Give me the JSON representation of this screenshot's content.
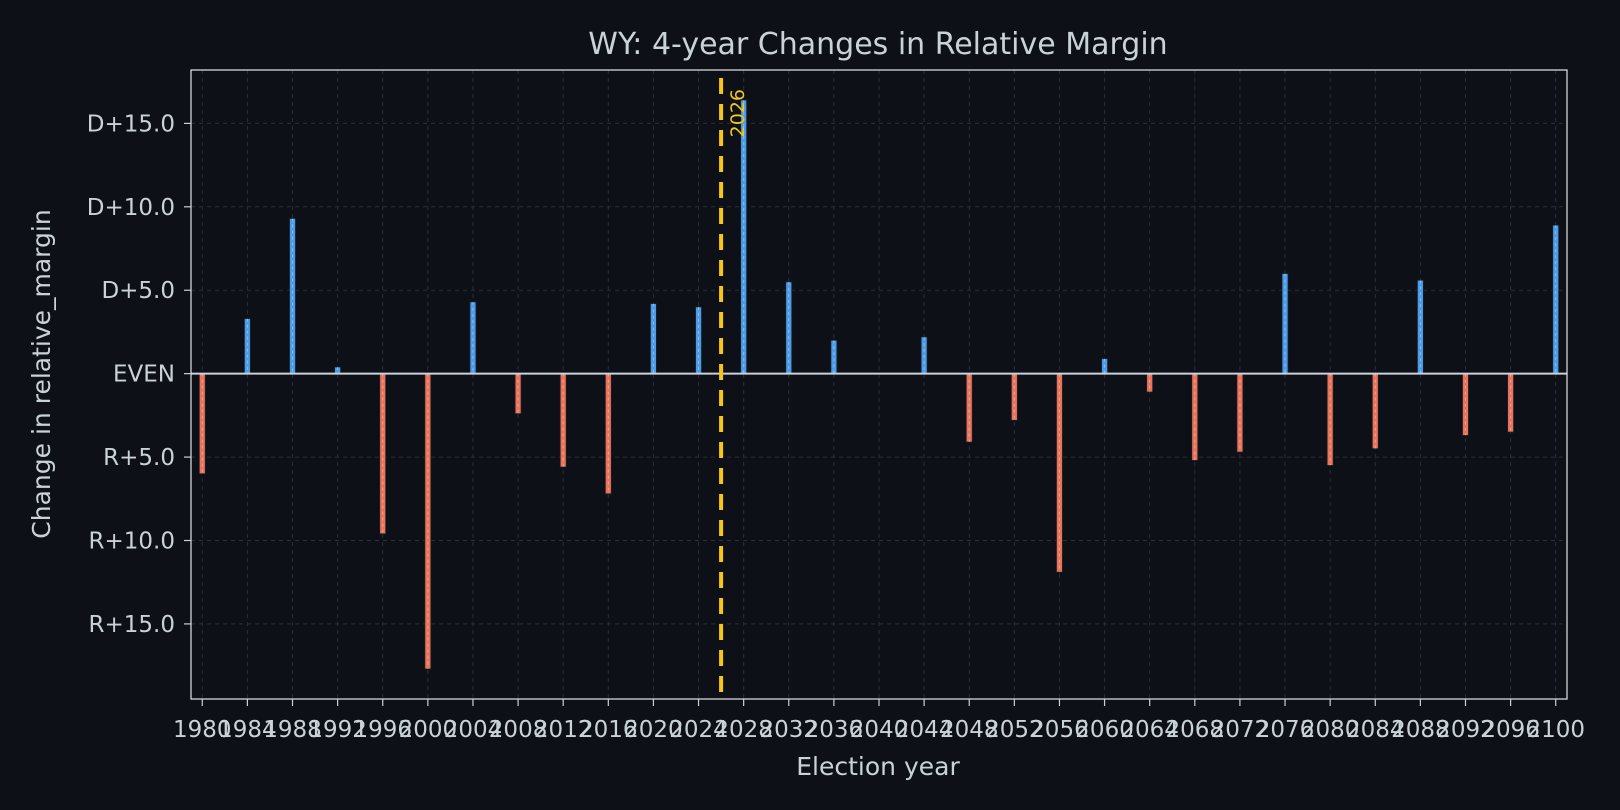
{
  "chart_data": {
    "type": "bar",
    "title": "WY: 4-year Changes in Relative Margin",
    "xlabel": "Election year",
    "ylabel": "Change in relative_margin",
    "x": [
      1980,
      1984,
      1988,
      1992,
      1996,
      2000,
      2004,
      2008,
      2012,
      2016,
      2020,
      2024,
      2028,
      2032,
      2036,
      2040,
      2044,
      2048,
      2052,
      2056,
      2060,
      2064,
      2068,
      2072,
      2076,
      2080,
      2084,
      2088,
      2092,
      2096,
      2100
    ],
    "values": [
      -6.0,
      3.3,
      9.3,
      0.4,
      -9.6,
      -17.7,
      4.3,
      -2.4,
      -5.6,
      -7.2,
      4.2,
      4.0,
      16.4,
      5.5,
      2.0,
      0.0,
      2.2,
      -4.1,
      -2.8,
      -11.9,
      0.9,
      -1.1,
      -5.2,
      -4.7,
      6.0,
      -5.5,
      -4.5,
      5.6,
      -3.7,
      -3.5,
      8.9
    ],
    "xticks": [
      "1980",
      "1984",
      "1988",
      "1992",
      "1996",
      "2000",
      "2004",
      "2008",
      "2012",
      "2016",
      "2020",
      "2024",
      "2028",
      "2032",
      "2036",
      "2040",
      "2044",
      "2048",
      "2052",
      "2056",
      "2060",
      "2064",
      "2068",
      "2072",
      "2076",
      "2080",
      "2084",
      "2088",
      "2092",
      "2096",
      "2100"
    ],
    "yticks": [
      {
        "value": 15,
        "label": "D+15.0"
      },
      {
        "value": 10,
        "label": "D+10.0"
      },
      {
        "value": 5,
        "label": "D+5.0"
      },
      {
        "value": 0,
        "label": "EVEN"
      },
      {
        "value": -5,
        "label": "R+5.0"
      },
      {
        "value": -10,
        "label": "R+10.0"
      },
      {
        "value": -15,
        "label": "R+15.0"
      }
    ],
    "xlim": [
      1979,
      2101
    ],
    "ylim": [
      -19.5,
      18.2
    ],
    "grid": true,
    "marker": {
      "x": 2026,
      "label": "2026"
    },
    "colors": {
      "positive": "#4c9be8",
      "negative": "#e8735a",
      "marker": "#f5c518",
      "background": "#0d1117",
      "text": "#c9d1d9",
      "zero_line": "#c9d1d9"
    }
  }
}
